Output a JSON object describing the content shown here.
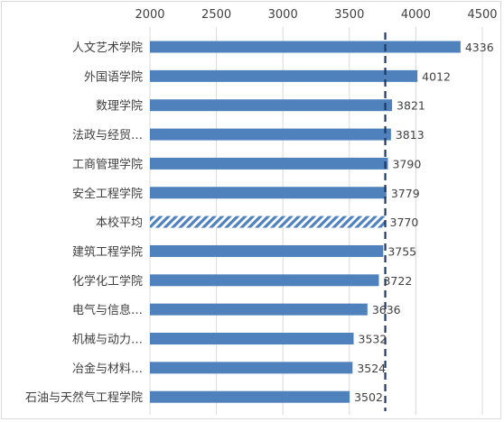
{
  "chart_data": {
    "type": "bar",
    "orientation": "horizontal",
    "axis_position": "top",
    "xlim": [
      2000,
      4500
    ],
    "x_ticks": [
      2000,
      2500,
      3000,
      3500,
      4000,
      4500
    ],
    "categories": [
      "人文艺术学院",
      "外国语学院",
      "数理学院",
      "法政与经贸…",
      "工商管理学院",
      "安全工程学院",
      "本校平均",
      "建筑工程学院",
      "化学化工学院",
      "电气与信息…",
      "机械与动力…",
      "冶金与材料…",
      "石油与天然气工程学院"
    ],
    "values": [
      4336,
      4012,
      3821,
      3813,
      3790,
      3779,
      3770,
      3755,
      3722,
      3636,
      3532,
      3524,
      3502
    ],
    "highlight_category": "本校平均",
    "reference_line": {
      "value": 3770,
      "style": "dashed",
      "color": "#1f3864"
    },
    "data_labels": true,
    "grid": true,
    "colors": {
      "bar": "#4f81bd",
      "highlight_hatch": "#4f81bd",
      "grid": "#d9d9d9",
      "text": "#404040"
    }
  }
}
